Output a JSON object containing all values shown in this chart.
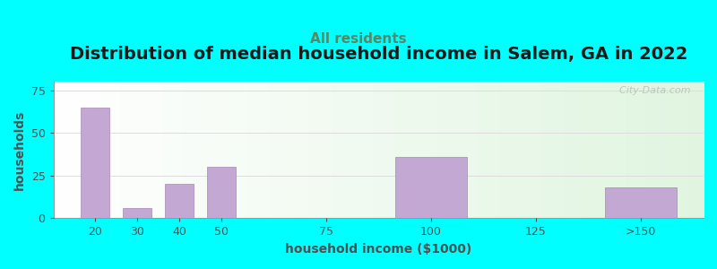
{
  "title": "Distribution of median household income in Salem, GA in 2022",
  "subtitle": "All residents",
  "xlabel": "household income ($1000)",
  "ylabel": "households",
  "background_color": "#00FFFF",
  "bar_color": "#c4a8d4",
  "bar_edge_color": "#a888b8",
  "categories": [
    "20",
    "30",
    "40",
    "50",
    "75",
    "100",
    "125",
    ">150"
  ],
  "x_positions": [
    20,
    30,
    40,
    50,
    75,
    100,
    125,
    150
  ],
  "bar_widths": [
    8,
    8,
    8,
    8,
    20,
    20,
    20,
    20
  ],
  "values": [
    65,
    6,
    20,
    30,
    0,
    36,
    0,
    18
  ],
  "ylim": [
    0,
    80
  ],
  "yticks": [
    0,
    25,
    50,
    75
  ],
  "xlim": [
    10,
    165
  ],
  "xtick_positions": [
    20,
    30,
    40,
    50,
    75,
    100,
    125,
    150
  ],
  "xtick_labels": [
    "20",
    "30",
    "40",
    "50",
    "75",
    "100",
    "125",
    ">150"
  ],
  "watermark": "  City-Data.com",
  "title_fontsize": 14,
  "subtitle_fontsize": 11,
  "axis_label_fontsize": 10,
  "tick_fontsize": 9
}
